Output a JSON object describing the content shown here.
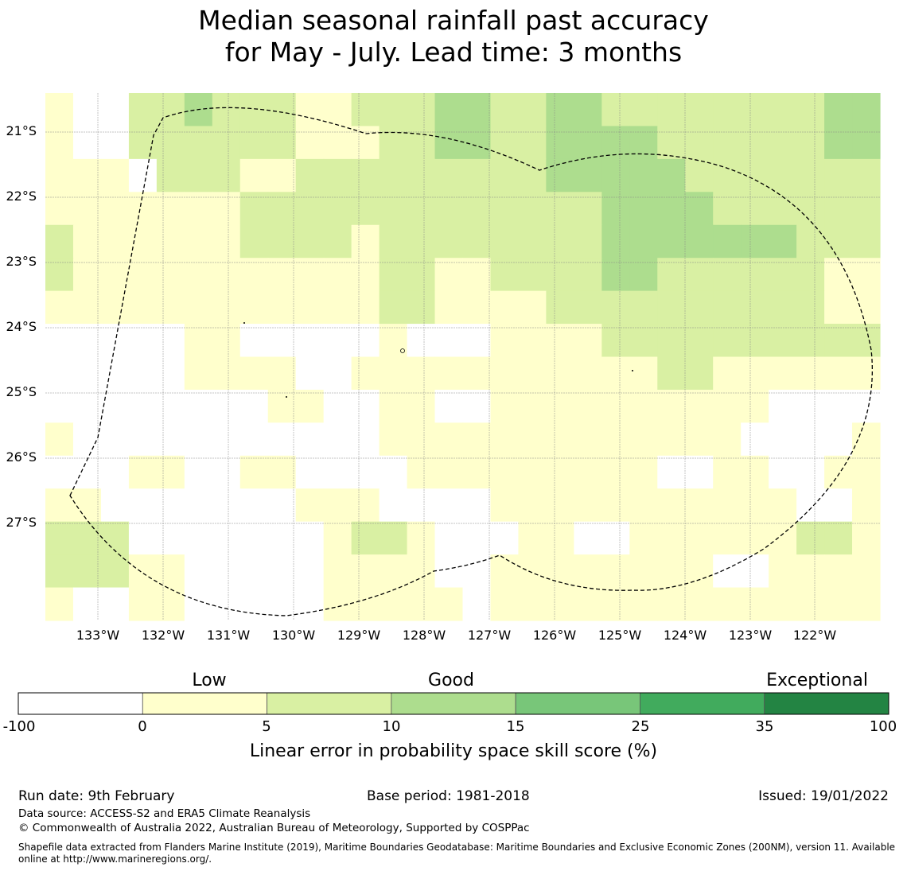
{
  "title": {
    "line1": "Median seasonal rainfall past accuracy",
    "line2": "for May - July. Lead time: 3 months"
  },
  "map": {
    "lat_labels": [
      "21°S",
      "22°S",
      "23°S",
      "24°S",
      "25°S",
      "26°S",
      "27°S"
    ],
    "lon_labels": [
      "133°W",
      "132°W",
      "131°W",
      "130°W",
      "129°W",
      "128°W",
      "127°W",
      "126°W",
      "125°W",
      "124°W",
      "123°W",
      "122°W"
    ],
    "boundary_label": "Exclusive Economic Zone boundary (dashed)",
    "grid": [
      [
        1,
        0,
        0,
        2,
        2,
        3,
        2,
        2,
        2,
        1,
        1,
        2,
        2,
        2,
        3,
        3,
        2,
        2,
        3,
        3,
        2,
        2,
        2,
        2,
        2,
        2,
        2,
        2,
        3,
        3
      ],
      [
        1,
        0,
        0,
        2,
        2,
        2,
        2,
        2,
        2,
        1,
        1,
        1,
        2,
        2,
        3,
        3,
        2,
        2,
        3,
        3,
        3,
        3,
        2,
        2,
        2,
        2,
        2,
        2,
        3,
        3
      ],
      [
        1,
        1,
        1,
        0,
        2,
        2,
        2,
        1,
        1,
        2,
        2,
        2,
        2,
        2,
        2,
        2,
        2,
        2,
        3,
        3,
        3,
        3,
        3,
        2,
        2,
        2,
        2,
        2,
        2,
        2
      ],
      [
        1,
        1,
        1,
        1,
        1,
        1,
        1,
        2,
        2,
        2,
        2,
        2,
        2,
        2,
        2,
        2,
        2,
        2,
        2,
        2,
        3,
        3,
        3,
        3,
        2,
        2,
        2,
        2,
        2,
        2
      ],
      [
        2,
        1,
        1,
        1,
        1,
        1,
        1,
        2,
        2,
        2,
        2,
        1,
        2,
        2,
        2,
        2,
        2,
        2,
        2,
        2,
        3,
        3,
        3,
        3,
        3,
        3,
        3,
        2,
        2,
        2
      ],
      [
        2,
        1,
        1,
        1,
        1,
        1,
        1,
        1,
        1,
        1,
        1,
        1,
        2,
        2,
        1,
        1,
        2,
        2,
        2,
        2,
        3,
        3,
        2,
        2,
        2,
        2,
        2,
        2,
        1,
        1
      ],
      [
        1,
        1,
        1,
        1,
        1,
        1,
        1,
        1,
        1,
        1,
        1,
        1,
        2,
        2,
        1,
        1,
        1,
        1,
        2,
        2,
        2,
        2,
        2,
        2,
        2,
        2,
        2,
        2,
        1,
        1
      ],
      [
        0,
        0,
        0,
        0,
        0,
        1,
        1,
        0,
        0,
        0,
        0,
        0,
        1,
        0,
        0,
        0,
        1,
        1,
        1,
        1,
        2,
        2,
        2,
        2,
        2,
        2,
        2,
        2,
        2,
        2
      ],
      [
        0,
        0,
        0,
        0,
        0,
        1,
        1,
        1,
        1,
        0,
        0,
        1,
        1,
        1,
        1,
        1,
        1,
        1,
        1,
        1,
        1,
        1,
        2,
        2,
        1,
        1,
        1,
        1,
        1,
        1
      ],
      [
        0,
        0,
        0,
        0,
        0,
        0,
        0,
        0,
        1,
        1,
        0,
        0,
        1,
        1,
        0,
        0,
        1,
        1,
        1,
        1,
        1,
        1,
        1,
        1,
        1,
        1,
        0,
        0,
        0,
        0
      ],
      [
        1,
        0,
        0,
        0,
        0,
        0,
        0,
        0,
        0,
        0,
        0,
        0,
        1,
        1,
        1,
        1,
        1,
        1,
        1,
        1,
        1,
        1,
        1,
        1,
        1,
        0,
        0,
        0,
        0,
        1
      ],
      [
        0,
        0,
        0,
        1,
        1,
        0,
        0,
        1,
        1,
        0,
        0,
        0,
        0,
        1,
        1,
        1,
        1,
        1,
        1,
        1,
        1,
        1,
        0,
        0,
        1,
        1,
        0,
        0,
        1,
        1
      ],
      [
        1,
        1,
        0,
        0,
        0,
        0,
        0,
        0,
        0,
        1,
        1,
        1,
        0,
        0,
        0,
        0,
        1,
        1,
        1,
        1,
        1,
        1,
        1,
        1,
        1,
        1,
        1,
        0,
        0,
        1
      ],
      [
        2,
        2,
        2,
        0,
        0,
        0,
        0,
        0,
        0,
        0,
        1,
        2,
        2,
        1,
        0,
        0,
        0,
        1,
        1,
        0,
        0,
        1,
        1,
        1,
        1,
        1,
        1,
        2,
        2,
        1
      ],
      [
        2,
        2,
        2,
        1,
        1,
        0,
        0,
        0,
        0,
        0,
        1,
        1,
        1,
        1,
        0,
        0,
        1,
        1,
        1,
        1,
        1,
        1,
        1,
        1,
        0,
        0,
        1,
        1,
        1,
        1
      ],
      [
        1,
        0,
        0,
        1,
        1,
        0,
        0,
        0,
        0,
        0,
        1,
        1,
        1,
        1,
        1,
        0,
        1,
        1,
        1,
        1,
        1,
        1,
        1,
        1,
        1,
        1,
        1,
        1,
        1,
        1
      ]
    ]
  },
  "colorbar": {
    "category_labels": [
      "Low",
      "Good",
      "Exceptional"
    ],
    "tick_labels": [
      "-100",
      "0",
      "5",
      "10",
      "15",
      "25",
      "35",
      "100"
    ],
    "colors": [
      "#ffffff",
      "#ffffcc",
      "#d9f0a3",
      "#addd8e",
      "#78c679",
      "#41ab5d",
      "#238443"
    ],
    "xlabel": "Linear error in probability space skill score (%)"
  },
  "footer": {
    "run_date": "Run date: 9th February",
    "base_period": "Base period: 1981-2018",
    "issued": "Issued: 19/01/2022",
    "data_source": "Data source: ACCESS-S2 and ERA5 Climate Reanalysis",
    "copyright": "© Commonwealth of Australia 2022, Australian Bureau of Meteorology, Supported by COSPPac",
    "shapefile": "Shapefile data extracted from Flanders Marine Institute (2019), Maritime Boundaries Geodatabase: Maritime Boundaries and Exclusive Economic Zones (200NM), version 11. Available online at http://www.marineregions.org/."
  }
}
